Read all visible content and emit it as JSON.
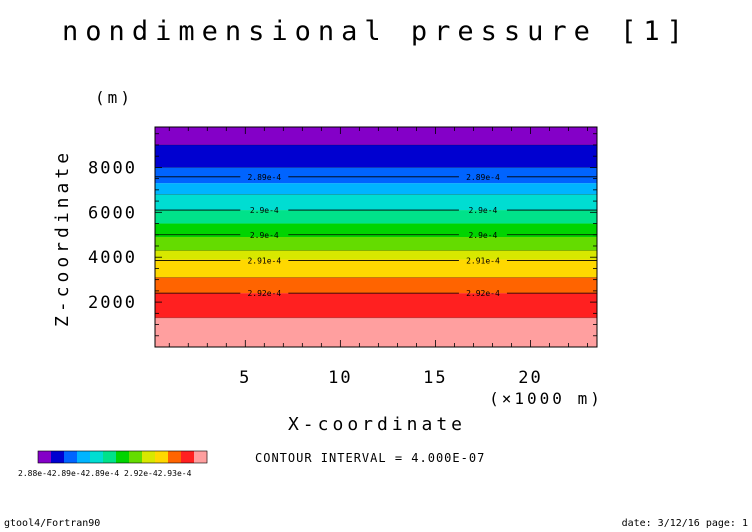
{
  "chart_data": {
    "type": "heatmap",
    "title": "nondimensional pressure [1]",
    "xlabel": "X-coordinate",
    "x_units": "(×1000 m)",
    "ylabel": "Z-coordinate",
    "y_units": "(m)",
    "xlim": [
      0.25,
      23.5
    ],
    "ylim": [
      0,
      9800
    ],
    "x_ticks": [
      5,
      10,
      15,
      20
    ],
    "y_ticks": [
      2000,
      4000,
      6000,
      8000
    ],
    "bands": [
      {
        "z0": 0,
        "z1": 1300,
        "color": "#ff9f9f"
      },
      {
        "z0": 1300,
        "z1": 2400,
        "color": "#ff2020"
      },
      {
        "z0": 2400,
        "z1": 3100,
        "color": "#ff6400"
      },
      {
        "z0": 3100,
        "z1": 3900,
        "color": "#ffd800"
      },
      {
        "z0": 3900,
        "z1": 4300,
        "color": "#d8e800"
      },
      {
        "z0": 4300,
        "z1": 4900,
        "color": "#64dc00"
      },
      {
        "z0": 4900,
        "z1": 5500,
        "color": "#00d400"
      },
      {
        "z0": 5500,
        "z1": 6100,
        "color": "#00e28a"
      },
      {
        "z0": 6100,
        "z1": 6800,
        "color": "#00ddd2"
      },
      {
        "z0": 6800,
        "z1": 7300,
        "color": "#00b4ff"
      },
      {
        "z0": 7300,
        "z1": 8000,
        "color": "#0064ff"
      },
      {
        "z0": 8000,
        "z1": 9000,
        "color": "#0000d0"
      },
      {
        "z0": 9000,
        "z1": 9800,
        "color": "#8400c8"
      }
    ],
    "contour_lines": [
      {
        "z": 2400,
        "label": "2.92e-4"
      },
      {
        "z": 3850,
        "label": "2.91e-4"
      },
      {
        "z": 5000,
        "label": "2.9e-4"
      },
      {
        "z": 6100,
        "label": "2.9e-4"
      },
      {
        "z": 7580,
        "label": "2.89e-4"
      }
    ],
    "contour_label_x": [
      6.0,
      17.5
    ],
    "extra_lines": [
      1300,
      3100,
      4300,
      6800,
      8000,
      9000
    ],
    "colorbar": {
      "colors": [
        "#8400c8",
        "#0000d0",
        "#0064ff",
        "#00b4ff",
        "#00ddd2",
        "#00e28a",
        "#00d400",
        "#64dc00",
        "#d8e800",
        "#ffd800",
        "#ff6400",
        "#ff2020",
        "#ff9f9f"
      ],
      "label": "2.88e-42.89e-42.89e-4 2.92e-42.93e-4"
    },
    "contour_interval": "CONTOUR INTERVAL = 4.000E-07"
  },
  "footer": {
    "left": "gtool4/Fortran90",
    "right": "date: 3/12/16 page: 1"
  }
}
